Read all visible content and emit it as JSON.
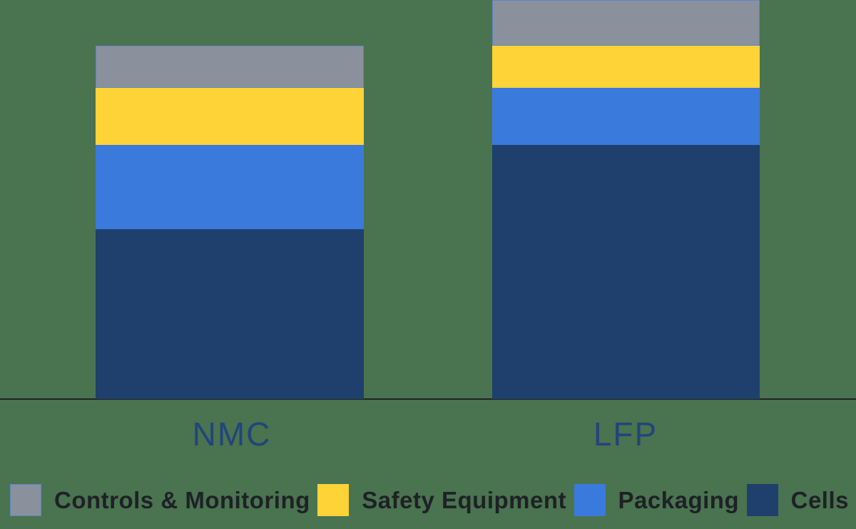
{
  "chart_data": {
    "type": "bar",
    "subtype": "stacked-vertical",
    "title": "",
    "xlabel": "",
    "ylabel": "",
    "units": "relative index (NMC total = 100), estimated from bar heights",
    "ylim": [
      0,
      113
    ],
    "grid": false,
    "y_axis_labels_visible": false,
    "legend_position": "bottom",
    "categories": [
      "NMC",
      "LFP"
    ],
    "series": [
      {
        "key": "cells",
        "name": "Cells",
        "color": "#1F3F6C",
        "values": [
          48,
          72
        ]
      },
      {
        "key": "packaging",
        "name": "Packaging",
        "color": "#3B7ADD",
        "values": [
          24,
          16
        ]
      },
      {
        "key": "safety-equipment",
        "name": "Safety Equipment",
        "color": "#FED337",
        "values": [
          16,
          12
        ]
      },
      {
        "key": "controls-monitoring",
        "name": "Controls & Monitoring",
        "color": "#8A919C",
        "values": [
          12,
          13
        ]
      }
    ]
  },
  "colors": {
    "background": "#4A7350",
    "axis_line": "#232323",
    "category_label": "#21457B",
    "legend_text": "#1E2126",
    "controls_segment_border": "#5B87C5"
  },
  "legend": {
    "order": [
      "controls-monitoring",
      "safety-equipment",
      "packaging",
      "cells"
    ]
  }
}
